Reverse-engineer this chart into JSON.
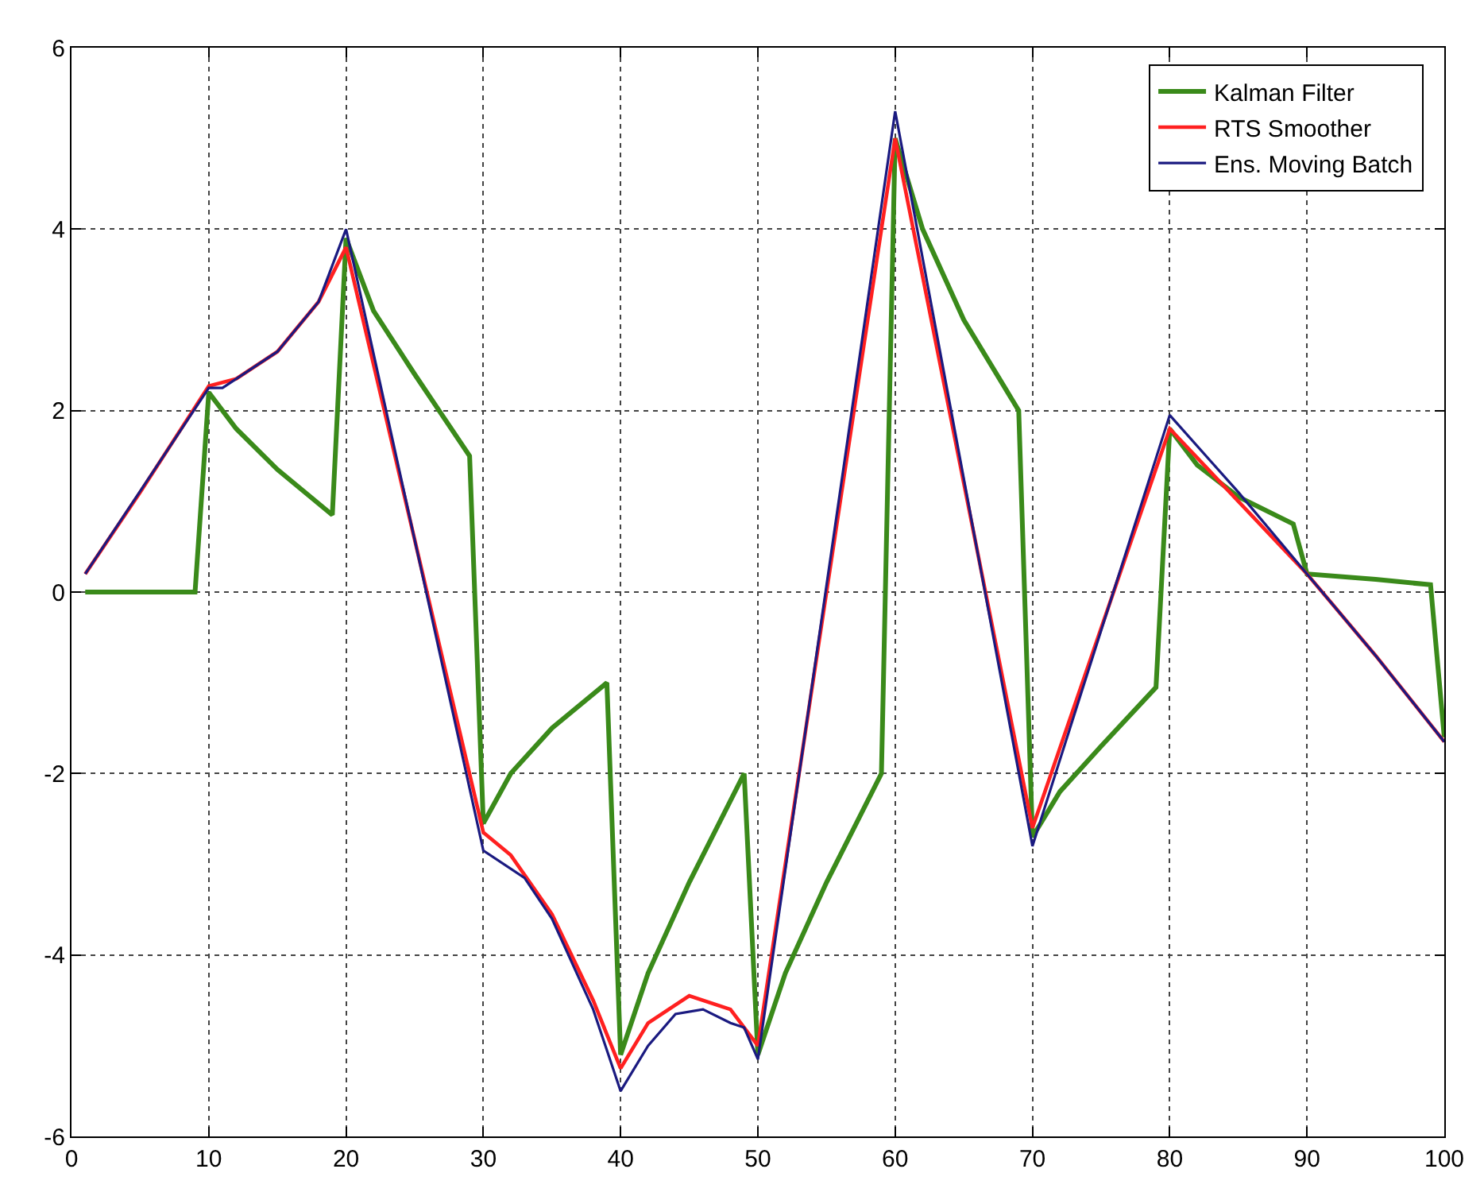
{
  "chart_data": {
    "type": "line",
    "xlim": [
      0,
      100
    ],
    "ylim": [
      -6,
      6
    ],
    "xticks": [
      0,
      10,
      20,
      30,
      40,
      50,
      60,
      70,
      80,
      90,
      100
    ],
    "yticks": [
      -6,
      -4,
      -2,
      0,
      2,
      4,
      6
    ],
    "grid": true,
    "legend": "top right",
    "line_style": "solid",
    "marker": "none",
    "series": [
      {
        "name": "Kalman Filter",
        "color": "#3a8a1a",
        "x": [
          1,
          9,
          10,
          12,
          15,
          19,
          20,
          22,
          25,
          29,
          30,
          32,
          35,
          39,
          40,
          42,
          45,
          49,
          50,
          52,
          55,
          59,
          60,
          62,
          65,
          69,
          70,
          72,
          75,
          79,
          80,
          82,
          85,
          89,
          90,
          95,
          99,
          100
        ],
        "values": [
          0,
          0,
          2.2,
          1.8,
          1.35,
          0.85,
          3.9,
          3.1,
          2.4,
          1.5,
          -2.55,
          -2.0,
          -1.5,
          -1.0,
          -5.1,
          -4.2,
          -3.2,
          -2.0,
          -5.1,
          -4.2,
          -3.2,
          -2.0,
          5.0,
          4.0,
          3.0,
          2.0,
          -2.7,
          -2.2,
          -1.7,
          -1.05,
          1.8,
          1.4,
          1.05,
          0.75,
          0.2,
          0.14,
          0.08,
          -1.6
        ]
      },
      {
        "name": "RTS Smoother",
        "color": "#ff2020",
        "x": [
          1,
          5,
          10,
          12,
          15,
          18,
          20,
          30,
          32,
          35,
          38,
          40,
          42,
          45,
          48,
          50,
          60,
          70,
          80,
          85,
          90,
          95,
          100
        ],
        "values": [
          0.2,
          1.1,
          2.27,
          2.35,
          2.65,
          3.2,
          3.8,
          -2.65,
          -2.9,
          -3.55,
          -4.5,
          -5.25,
          -4.75,
          -4.45,
          -4.6,
          -5.0,
          5.0,
          -2.6,
          1.8,
          1.0,
          0.2,
          -0.7,
          -1.65
        ]
      },
      {
        "name": "Ens. Moving Batch",
        "color": "#1a1a80",
        "x": [
          1,
          10,
          11,
          15,
          18,
          20,
          30,
          33,
          35,
          38,
          40,
          42,
          44,
          46,
          48,
          49,
          50,
          60,
          70,
          80,
          85,
          90,
          95,
          100
        ],
        "values": [
          0.2,
          2.25,
          2.25,
          2.65,
          3.2,
          4.0,
          -2.85,
          -3.15,
          -3.6,
          -4.6,
          -5.5,
          -5.0,
          -4.65,
          -4.6,
          -4.75,
          -4.8,
          -5.15,
          5.3,
          -2.8,
          1.95,
          1.1,
          0.2,
          -0.7,
          -1.65
        ]
      }
    ]
  }
}
